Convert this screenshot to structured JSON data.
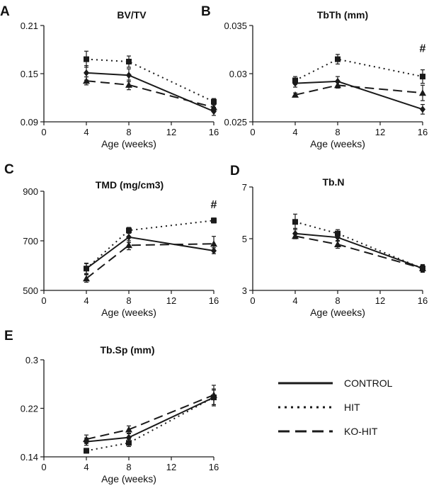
{
  "series_styles": [
    {
      "name": "CONTROL",
      "marker": "diamond",
      "dash": "solid"
    },
    {
      "name": "HIT",
      "marker": "square",
      "dash": "dotted"
    },
    {
      "name": "KO-HIT",
      "marker": "triangle",
      "dash": "dashed"
    }
  ],
  "colors": {
    "ink": "#1a1a1a",
    "background": "#ffffff"
  },
  "legend": {
    "labels": [
      "CONTROL",
      "HIT",
      "KO-HIT"
    ]
  },
  "chart_data": [
    {
      "panel": "A",
      "type": "line",
      "title": "BV/TV",
      "xlabel": "Age (weeks)",
      "ylabel": "",
      "xlim": [
        0,
        16
      ],
      "ylim": [
        0.09,
        0.21
      ],
      "xticks": [
        0,
        4,
        8,
        12,
        16
      ],
      "xtick_labels": [
        "0",
        "4",
        "8",
        "12",
        "16"
      ],
      "yticks": [
        0.09,
        0.15,
        0.21
      ],
      "ytick_labels": [
        "0.09",
        "0.15",
        "0.21"
      ],
      "annotations": [],
      "x": [
        4,
        8,
        16
      ],
      "series": [
        {
          "name": "CONTROL",
          "values": [
            0.151,
            0.148,
            0.103
          ],
          "errors": [
            0.009,
            0.008,
            0.005
          ]
        },
        {
          "name": "HIT",
          "values": [
            0.168,
            0.165,
            0.115
          ],
          "errors": [
            0.01,
            0.007,
            0.004
          ]
        },
        {
          "name": "KO-HIT",
          "values": [
            0.141,
            0.136,
            0.108
          ],
          "errors": [
            0.005,
            0.006,
            0.004
          ]
        }
      ]
    },
    {
      "panel": "B",
      "type": "line",
      "title": "TbTh (mm)",
      "xlabel": "Age (weeks)",
      "ylabel": "",
      "xlim": [
        0,
        16
      ],
      "ylim": [
        0.025,
        0.035
      ],
      "xticks": [
        0,
        4,
        8,
        12,
        16
      ],
      "xtick_labels": [
        "0",
        "4",
        "8",
        "12",
        "16"
      ],
      "yticks": [
        0.025,
        0.03,
        0.035
      ],
      "ytick_labels": [
        "0.025",
        "0.03",
        "0.035"
      ],
      "annotations": [
        {
          "text": "#",
          "x": 16,
          "y": 0.0327
        }
      ],
      "x": [
        4,
        8,
        16
      ],
      "series": [
        {
          "name": "CONTROL",
          "values": [
            0.029,
            0.0292,
            0.0263
          ],
          "errors": [
            0.0004,
            0.0005,
            0.0005
          ]
        },
        {
          "name": "HIT",
          "values": [
            0.0293,
            0.0315,
            0.0297
          ],
          "errors": [
            0.0004,
            0.0005,
            0.0007
          ]
        },
        {
          "name": "KO-HIT",
          "values": [
            0.0278,
            0.0288,
            0.028
          ],
          "errors": [
            0.0002,
            0.0003,
            0.0008
          ]
        }
      ]
    },
    {
      "panel": "C",
      "type": "line",
      "title": "TMD (mg/cm3)",
      "xlabel": "Age (weeks)",
      "ylabel": "",
      "xlim": [
        0,
        16
      ],
      "ylim": [
        500,
        900
      ],
      "xticks": [
        0,
        4,
        8,
        12,
        16
      ],
      "xtick_labels": [
        "0",
        "4",
        "8",
        "12",
        "16"
      ],
      "yticks": [
        500,
        700,
        900
      ],
      "ytick_labels": [
        "500",
        "700",
        "900"
      ],
      "annotations": [
        {
          "text": "#",
          "x": 16,
          "y": 848
        }
      ],
      "x": [
        4,
        8,
        16
      ],
      "series": [
        {
          "name": "CONTROL",
          "values": [
            588,
            715,
            660
          ],
          "errors": [
            20,
            22,
            12
          ]
        },
        {
          "name": "HIT",
          "values": [
            588,
            742,
            782
          ],
          "errors": [
            22,
            12,
            10
          ]
        },
        {
          "name": "KO-HIT",
          "values": [
            548,
            682,
            688
          ],
          "errors": [
            15,
            18,
            30
          ]
        }
      ]
    },
    {
      "panel": "D",
      "type": "line",
      "title": "Tb.N",
      "xlabel": "Age (weeks)",
      "ylabel": "",
      "xlim": [
        0,
        16
      ],
      "ylim": [
        3,
        7
      ],
      "xticks": [
        0,
        4,
        8,
        12,
        16
      ],
      "xtick_labels": [
        "0",
        "4",
        "8",
        "12",
        "16"
      ],
      "yticks": [
        3,
        5,
        7
      ],
      "ytick_labels": [
        "3",
        "5",
        "7"
      ],
      "annotations": [],
      "x": [
        4,
        8,
        16
      ],
      "series": [
        {
          "name": "CONTROL",
          "values": [
            5.2,
            5.05,
            3.85
          ],
          "errors": [
            0.2,
            0.15,
            0.12
          ]
        },
        {
          "name": "HIT",
          "values": [
            5.65,
            5.2,
            3.85
          ],
          "errors": [
            0.3,
            0.15,
            0.15
          ]
        },
        {
          "name": "KO-HIT",
          "values": [
            5.1,
            4.78,
            3.85
          ],
          "errors": [
            0.1,
            0.15,
            0.12
          ]
        }
      ]
    },
    {
      "panel": "E",
      "type": "line",
      "title": "Tb.Sp (mm)",
      "xlabel": "Age (weeks)",
      "ylabel": "",
      "xlim": [
        0,
        16
      ],
      "ylim": [
        0.14,
        0.3
      ],
      "xticks": [
        0,
        4,
        8,
        12,
        16
      ],
      "xtick_labels": [
        "0",
        "4",
        "8",
        "12",
        "16"
      ],
      "yticks": [
        0.14,
        0.22,
        0.3
      ],
      "ytick_labels": [
        "0.14",
        "0.22",
        "0.3"
      ],
      "annotations": [],
      "x": [
        4,
        8,
        16
      ],
      "series": [
        {
          "name": "CONTROL",
          "values": [
            0.165,
            0.172,
            0.238
          ],
          "errors": [
            0.006,
            0.006,
            0.012
          ]
        },
        {
          "name": "HIT",
          "values": [
            0.15,
            0.163,
            0.238
          ],
          "errors": [
            0.004,
            0.006,
            0.014
          ]
        },
        {
          "name": "KO-HIT",
          "values": [
            0.169,
            0.185,
            0.242
          ],
          "errors": [
            0.007,
            0.006,
            0.016
          ]
        }
      ]
    }
  ]
}
